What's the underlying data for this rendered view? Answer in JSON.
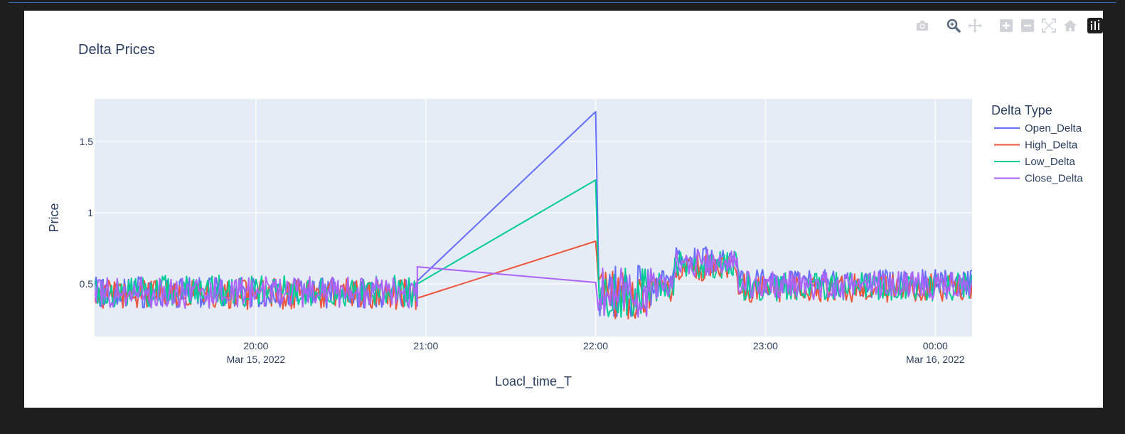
{
  "modebar": {
    "icons": [
      "camera-icon",
      "zoom-icon",
      "pan-icon",
      "zoom-in-icon",
      "zoom-out-icon",
      "autoscale-icon",
      "reset-axes-icon",
      "plotly-logo-icon"
    ]
  },
  "chart_data": {
    "type": "line",
    "title": "Delta Prices",
    "xlabel": "Loacl_time_T",
    "ylabel": "Price",
    "legend_title": "Delta Type",
    "legend_placement": "right",
    "grid": true,
    "xlim": [
      "2022-03-15 19:03",
      "2022-03-16 00:13"
    ],
    "ylim": [
      0.13,
      1.8
    ],
    "x_ticks": [
      {
        "value": "2022-03-15 20:00",
        "line1": "20:00",
        "line2": "Mar 15, 2022"
      },
      {
        "value": "2022-03-15 21:00",
        "line1": "21:00",
        "line2": ""
      },
      {
        "value": "2022-03-15 22:00",
        "line1": "22:00",
        "line2": ""
      },
      {
        "value": "2022-03-15 23:00",
        "line1": "23:00",
        "line2": ""
      },
      {
        "value": "2022-03-16 00:00",
        "line1": "00:00",
        "line2": "Mar 16, 2022"
      }
    ],
    "y_ticks": [
      {
        "value": 0.5,
        "label": "0.5"
      },
      {
        "value": 1,
        "label": "1"
      },
      {
        "value": 1.5,
        "label": "1.5"
      }
    ],
    "segments": [
      {
        "start": "2022-03-15 19:03",
        "end": "2022-03-15 20:57"
      },
      {
        "start": "2022-03-15 22:01",
        "end": "2022-03-16 00:13"
      }
    ],
    "bridge": {
      "x1": "2022-03-15 20:57",
      "x2": "2022-03-15 22:00"
    },
    "series": [
      {
        "name": "Open_Delta",
        "color": "#636efa",
        "bridge_y": [
          0.52,
          1.71
        ],
        "seg1_level": 0.44,
        "seg2_level": 0.5,
        "seg2_peak": 0.66
      },
      {
        "name": "High_Delta",
        "color": "#ef553b",
        "bridge_y": [
          0.4,
          0.8
        ],
        "seg1_level": 0.43,
        "seg2_level": 0.47,
        "seg2_peak": 0.62
      },
      {
        "name": "Low_Delta",
        "color": "#00cc96",
        "bridge_y": [
          0.5,
          1.23
        ],
        "seg1_level": 0.45,
        "seg2_level": 0.48,
        "seg2_peak": 0.64
      },
      {
        "name": "Close_Delta",
        "color": "#ab63fa",
        "bridge_y": [
          0.62,
          0.51
        ],
        "seg1_level": 0.44,
        "seg2_level": 0.49,
        "seg2_peak": 0.65
      }
    ]
  }
}
